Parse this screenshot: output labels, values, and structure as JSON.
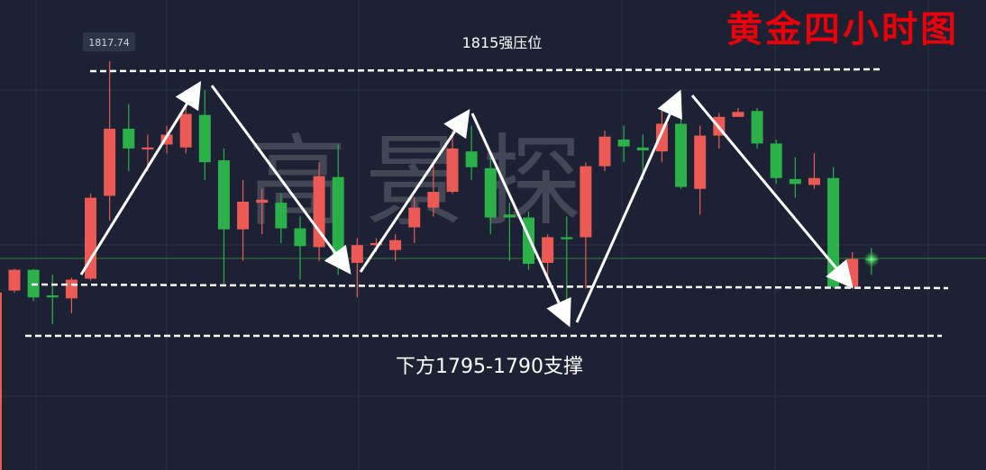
{
  "chart_data": {
    "type": "candlestick",
    "title": "黄金四小时图",
    "watermark": "高景探",
    "annotations": [
      "1815强压位",
      "下方1795-1790支撑"
    ],
    "categories": [
      null,
      null,
      null,
      null,
      null,
      null,
      null,
      null,
      null,
      null,
      null,
      null,
      null,
      null,
      null,
      null,
      null,
      null,
      null,
      null,
      null,
      null,
      null,
      null,
      null,
      null,
      null,
      null,
      null,
      null,
      null,
      null,
      null,
      null,
      null,
      null,
      null,
      null,
      null,
      null,
      null,
      null,
      null,
      null,
      null,
      null
    ],
    "open": [
      1794.5,
      1796.6,
      1794.0,
      1793.7,
      1795.7,
      1804.1,
      1810.9,
      1808.8,
      1809.3,
      1809.0,
      1812.3,
      1807.7,
      1800.7,
      1803.4,
      1803.4,
      1800.8,
      1798.9,
      1806.0,
      1797.3,
      1799.1,
      1798.6,
      1800.9,
      1802.9,
      1804.5,
      1808.6,
      1806.9,
      1802.2,
      1801.9,
      1797.3,
      1799.9,
      1799.9,
      1807.1,
      1809.8,
      1809.0,
      1808.6,
      1811.4,
      1804.8,
      1810.2,
      1812.1,
      1812.7,
      1809.4,
      1805.8,
      1805.2,
      1805.9,
      1794.9,
      1797.7
    ],
    "high": [
      1796.7,
      1796.7,
      1796.1,
      1795.8,
      1804.3,
      1817.74,
      1813.4,
      1810.3,
      1811.2,
      1814.8,
      1814.8,
      1808.9,
      1805.7,
      1804.8,
      1804.3,
      1802.0,
      1807.5,
      1809.3,
      1799.8,
      1799.8,
      1800.2,
      1803.9,
      1807.5,
      1810.7,
      1811.2,
      1808.0,
      1803.4,
      1802.5,
      1800.2,
      1802.0,
      1807.5,
      1810.7,
      1811.2,
      1810.3,
      1813.0,
      1814.4,
      1811.2,
      1812.5,
      1813.0,
      1813.0,
      1809.8,
      1808.0,
      1808.4,
      1807.0,
      1798.4,
      1798.8
    ],
    "low": [
      1794.3,
      1793.4,
      1791.1,
      1792.2,
      1795.5,
      1801.6,
      1806.6,
      1806.6,
      1808.4,
      1808.4,
      1805.7,
      1795.2,
      1797.5,
      1800.2,
      1799.3,
      1795.6,
      1797.5,
      1796.1,
      1793.8,
      1798.4,
      1797.5,
      1799.3,
      1802.0,
      1804.3,
      1805.7,
      1800.2,
      1797.5,
      1796.6,
      1795.6,
      1792.9,
      1794.7,
      1806.6,
      1807.5,
      1805.7,
      1807.5,
      1804.8,
      1802.2,
      1808.9,
      1812.1,
      1808.9,
      1805.3,
      1803.9,
      1804.8,
      1794.7,
      1794.7,
      1796.1
    ],
    "close": [
      1796.6,
      1793.8,
      1793.8,
      1795.6,
      1803.9,
      1810.9,
      1808.9,
      1809.0,
      1810.3,
      1812.4,
      1807.5,
      1800.7,
      1803.5,
      1803.7,
      1800.8,
      1799.0,
      1806.1,
      1797.5,
      1799.1,
      1799.3,
      1799.6,
      1802.9,
      1804.5,
      1808.9,
      1807.0,
      1801.9,
      1801.9,
      1797.2,
      1799.9,
      1799.7,
      1807.1,
      1810.1,
      1809.1,
      1808.7,
      1811.4,
      1805.0,
      1810.2,
      1812.1,
      1812.6,
      1809.4,
      1805.9,
      1805.3,
      1805.9,
      1794.9,
      1797.7,
      1797.6
    ],
    "up_color": "#ec5a55",
    "down_color": "#2bb04a",
    "ylim": [
      1776.3,
      1823.95
    ]
  }
}
